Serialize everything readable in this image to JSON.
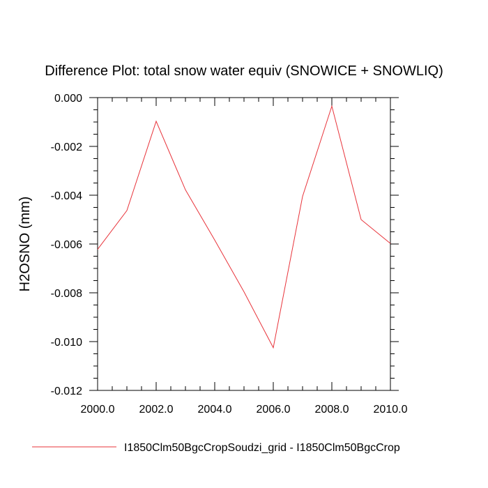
{
  "chart_data": {
    "type": "line",
    "title": "Difference Plot: total snow water equiv (SNOWICE + SNOWLIQ)",
    "xlabel": "",
    "ylabel": "H2OSNO  (mm)",
    "xlim": [
      2000,
      2010
    ],
    "ylim": [
      -0.012,
      0.0
    ],
    "x_ticks": [
      2000,
      2002,
      2004,
      2006,
      2008,
      2010
    ],
    "x_tick_labels": [
      "2000.0",
      "2002.0",
      "2004.0",
      "2006.0",
      "2008.0",
      "2010.0"
    ],
    "y_ticks": [
      0.0,
      -0.002,
      -0.004,
      -0.006,
      -0.008,
      -0.01,
      -0.012
    ],
    "y_tick_labels": [
      "0.000",
      "-0.002",
      "-0.004",
      "-0.006",
      "-0.008",
      "-0.010",
      "-0.012"
    ],
    "grid": false,
    "legend_position": "bottom",
    "series": [
      {
        "name": "I1850Clm50BgcCropSoudzi_grid - I1850Clm50BgcCrop",
        "color": "#e8333a",
        "x": [
          2000,
          2001,
          2002,
          2003,
          2004,
          2005,
          2006,
          2007,
          2008,
          2009,
          2010
        ],
        "values": [
          -0.00622,
          -0.00463,
          -0.00097,
          -0.00378,
          -0.00584,
          -0.00796,
          -0.01025,
          -0.00405,
          -0.00035,
          -0.005,
          -0.00598
        ]
      }
    ]
  }
}
